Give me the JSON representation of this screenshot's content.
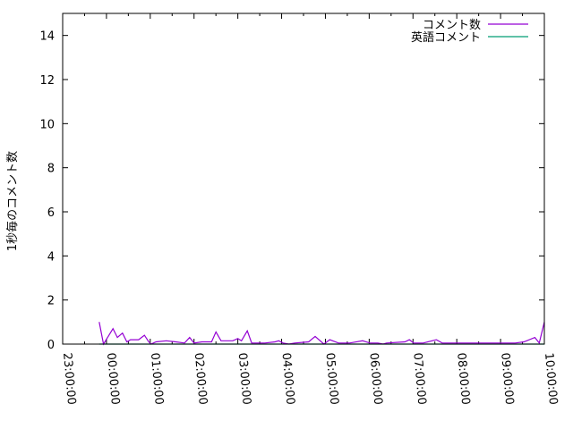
{
  "chart_data": {
    "type": "line",
    "title": "",
    "xlabel": "",
    "ylabel": "1秒毎のコメント数",
    "xlim": [
      "23:00:00",
      "10:00:00"
    ],
    "ylim": [
      0,
      15
    ],
    "x_ticks": [
      "23:00:00",
      "00:00:00",
      "01:00:00",
      "02:00:00",
      "03:00:00",
      "04:00:00",
      "05:00:00",
      "06:00:00",
      "07:00:00",
      "08:00:00",
      "09:00:00",
      "10:00:00"
    ],
    "y_ticks": [
      "0",
      "2",
      "4",
      "6",
      "8",
      "10",
      "12",
      "14"
    ],
    "grid": false,
    "legend_position": "top-right",
    "x": [
      "23:50",
      "23:56",
      "00:09",
      "00:15",
      "00:22",
      "00:28",
      "00:33",
      "00:44",
      "00:52",
      "00:58",
      "01:01",
      "01:08",
      "01:22",
      "01:35",
      "01:47",
      "01:54",
      "02:00",
      "02:11",
      "02:24",
      "02:30",
      "02:37",
      "02:53",
      "03:00",
      "03:05",
      "03:13",
      "03:19",
      "03:37",
      "03:51",
      "03:56",
      "04:02",
      "04:10",
      "04:18",
      "04:37",
      "04:46",
      "04:58",
      "05:06",
      "05:18",
      "05:33",
      "05:51",
      "06:01",
      "06:12",
      "06:19",
      "06:24",
      "06:49",
      "06:55",
      "07:01",
      "07:14",
      "07:32",
      "07:40",
      "08:00",
      "08:24",
      "08:43",
      "09:20",
      "09:32",
      "09:47",
      "09:53",
      "10:00"
    ],
    "series": [
      {
        "name": "コメント数",
        "color": "#9400D3",
        "values": [
          1.0,
          0,
          0.7,
          0.3,
          0.5,
          0.1,
          0.2,
          0.2,
          0.4,
          0.1,
          0,
          0.1,
          0.15,
          0.1,
          0.05,
          0.3,
          0.05,
          0.1,
          0.1,
          0.55,
          0.15,
          0.15,
          0.25,
          0.15,
          0.6,
          0.05,
          0.05,
          0.1,
          0.15,
          0.05,
          0,
          0.05,
          0.1,
          0.35,
          0,
          0.2,
          0.05,
          0.05,
          0.15,
          0.05,
          0.05,
          0,
          0.05,
          0.1,
          0.2,
          0.05,
          0.05,
          0.2,
          0.05,
          0.05,
          0.05,
          0.05,
          0.05,
          0.1,
          0.3,
          0.05,
          1.0
        ]
      },
      {
        "name": "英語コメント",
        "color": "#009E73",
        "values": [
          0,
          0,
          0,
          0,
          0,
          0,
          0,
          0,
          0,
          0,
          0,
          0,
          0,
          0,
          0,
          0,
          0,
          0,
          0,
          0,
          0,
          0,
          0,
          0,
          0,
          0,
          0,
          0,
          0,
          0,
          0,
          0,
          0,
          0,
          0,
          0,
          0,
          0,
          0,
          0,
          0,
          0,
          0,
          0,
          0,
          0,
          0,
          0,
          0,
          0,
          0,
          0,
          0,
          0,
          0,
          0,
          0
        ]
      }
    ]
  }
}
